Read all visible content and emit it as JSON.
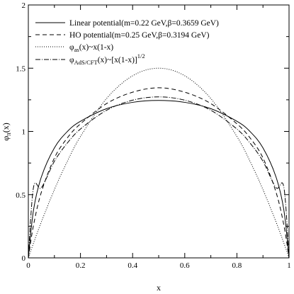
{
  "chart_data": {
    "type": "line",
    "title": "",
    "xlabel": "x",
    "ylabel": {
      "base": "φ",
      "sub": "π",
      "suffix": "(x)"
    },
    "xlim": [
      0,
      1
    ],
    "ylim": [
      0,
      2
    ],
    "xticks": [
      0,
      0.2,
      0.4,
      0.6,
      0.8,
      1
    ],
    "xtick_labels": [
      "0",
      "0.2",
      "0.4",
      "0.6",
      "0.8",
      "1"
    ],
    "yticks": [
      0,
      0.5,
      1,
      1.5,
      2
    ],
    "ytick_labels": [
      "0",
      "0.5",
      "1",
      "1.5",
      "2"
    ],
    "grid": false,
    "legend_position": "top-left",
    "x": [
      0,
      0.02,
      0.05,
      0.1,
      0.15,
      0.2,
      0.3,
      0.4,
      0.5,
      0.6,
      0.7,
      0.8,
      0.85,
      0.9,
      0.95,
      0.98,
      1
    ],
    "series": [
      {
        "key": "linear",
        "legend": {
          "text": "Linear potential(m=0.22 GeV,β=0.3659 GeV)"
        },
        "style": "solid",
        "values": [
          0,
          0.38,
          0.64,
          0.87,
          1.0,
          1.08,
          1.18,
          1.23,
          1.245,
          1.23,
          1.18,
          1.08,
          1.0,
          0.87,
          0.64,
          0.38,
          0
        ]
      },
      {
        "key": "ho",
        "legend": {
          "text": "HO potential(m=0.25 GeV,β=0.3194 GeV)"
        },
        "style": "dashed",
        "values": [
          0,
          0.26,
          0.52,
          0.79,
          0.95,
          1.06,
          1.22,
          1.31,
          1.345,
          1.31,
          1.22,
          1.06,
          0.95,
          0.79,
          0.52,
          0.26,
          0
        ]
      },
      {
        "key": "as",
        "legend": {
          "base": "φ",
          "sub": "as",
          "rest": "(x)~x(1-x)"
        },
        "style": "dotted",
        "values": [
          0,
          0.118,
          0.285,
          0.54,
          0.765,
          0.96,
          1.26,
          1.44,
          1.5,
          1.44,
          1.26,
          0.96,
          0.765,
          0.54,
          0.285,
          0.118,
          0
        ]
      },
      {
        "key": "adscft",
        "legend": {
          "base": "φ",
          "sub": "AdS/CFT",
          "rest": "(x)~[x(1-x)]",
          "sup": "1/2"
        },
        "style": "dashdot",
        "values": [
          0,
          0.56,
          0.555,
          0.764,
          0.909,
          1.019,
          1.167,
          1.247,
          1.273,
          1.247,
          1.167,
          1.019,
          0.909,
          0.764,
          0.555,
          0.56,
          0
        ]
      }
    ]
  }
}
